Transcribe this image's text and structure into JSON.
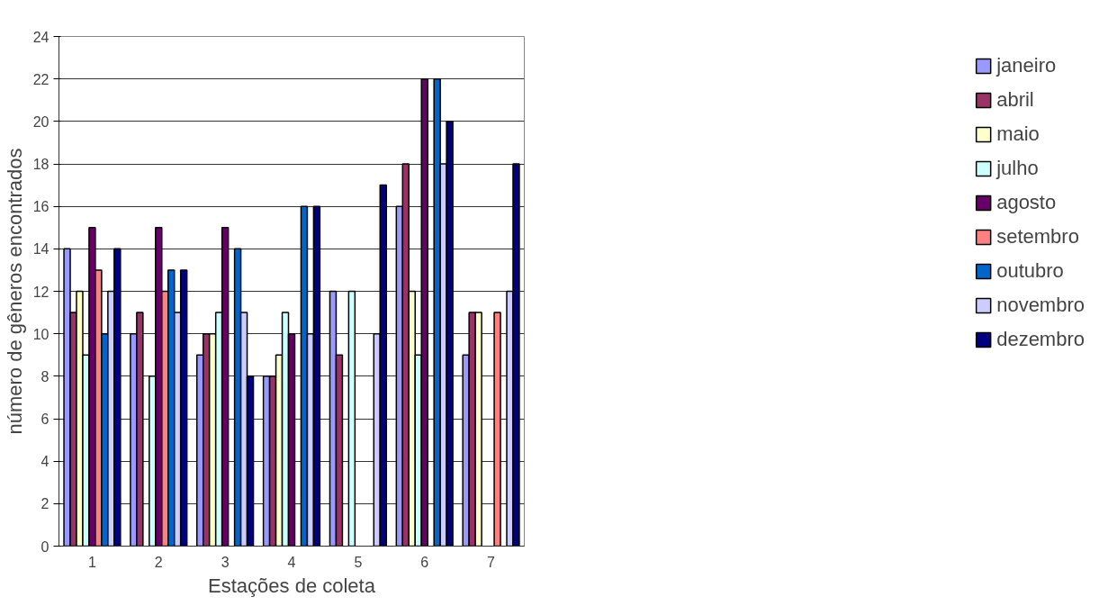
{
  "chart_data": {
    "type": "bar",
    "xlabel": "Estações de coleta",
    "ylabel": "número de gêneros encontrados",
    "categories": [
      "1",
      "2",
      "3",
      "4",
      "5",
      "6",
      "7"
    ],
    "series": [
      {
        "name": "janeiro",
        "color": "#9999ff",
        "values": [
          14,
          10,
          9,
          8,
          12,
          16,
          9
        ]
      },
      {
        "name": "abril",
        "color": "#993366",
        "values": [
          11,
          11,
          10,
          8,
          9,
          18,
          11
        ]
      },
      {
        "name": "maio",
        "color": "#ffffcc",
        "values": [
          12,
          null,
          10,
          9,
          null,
          12,
          11
        ]
      },
      {
        "name": "julho",
        "color": "#ccffff",
        "values": [
          9,
          8,
          11,
          11,
          12,
          9,
          null
        ]
      },
      {
        "name": "agosto",
        "color": "#660066",
        "values": [
          15,
          15,
          15,
          10,
          null,
          22,
          null
        ]
      },
      {
        "name": "setembro",
        "color": "#ff8080",
        "values": [
          13,
          12,
          null,
          null,
          null,
          null,
          11
        ]
      },
      {
        "name": "outubro",
        "color": "#0066cc",
        "values": [
          10,
          13,
          14,
          16,
          null,
          22,
          null
        ]
      },
      {
        "name": "novembro",
        "color": "#ccccff",
        "values": [
          12,
          11,
          11,
          10,
          10,
          18,
          12
        ]
      },
      {
        "name": "dezembro",
        "color": "#000080",
        "values": [
          14,
          13,
          8,
          16,
          17,
          20,
          18
        ]
      }
    ],
    "ylim": [
      0,
      24
    ],
    "yticks": [
      0,
      2,
      4,
      6,
      8,
      10,
      12,
      14,
      16,
      18,
      20,
      22,
      24
    ],
    "grid": "y",
    "legend": "right"
  }
}
